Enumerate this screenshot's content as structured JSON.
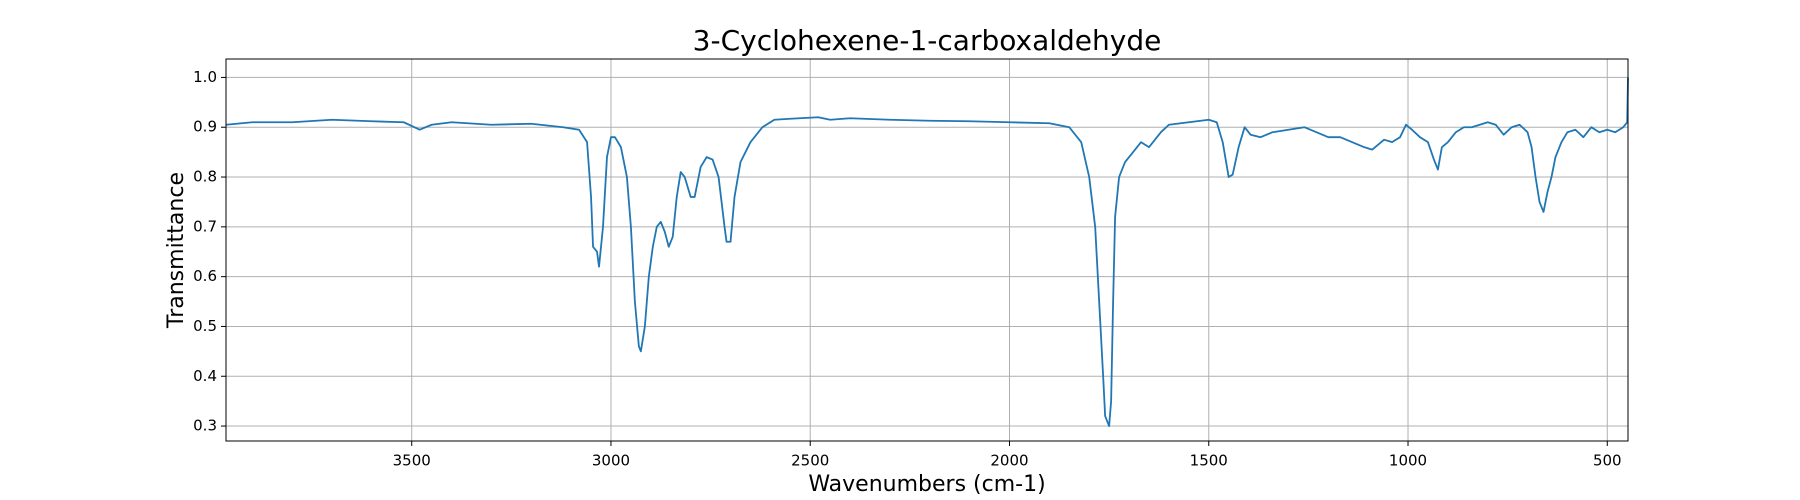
{
  "chart_data": {
    "type": "line",
    "title": "3-Cyclohexene-1-carboxaldehyde",
    "x_label": "Wavenumbers (cm-1)",
    "y_label": "Transmittance",
    "xlim": [
      3966,
      448
    ],
    "ylim": [
      0.27,
      1.037
    ],
    "xticks": [
      3500,
      3000,
      2500,
      2000,
      1500,
      1000,
      500
    ],
    "yticks": [
      0.3,
      0.4,
      0.5,
      0.6,
      0.7,
      0.8,
      0.9,
      {
        "value": 1,
        "label": "1.0"
      }
    ],
    "grid": true,
    "series": [
      {
        "color": "#1f77b4",
        "x": [
          3966,
          3900,
          3800,
          3700,
          3600,
          3520,
          3480,
          3450,
          3400,
          3300,
          3200,
          3120,
          3080,
          3060,
          3050,
          3045,
          3035,
          3030,
          3020,
          3010,
          3000,
          2990,
          2975,
          2960,
          2950,
          2940,
          2930,
          2925,
          2915,
          2905,
          2895,
          2885,
          2875,
          2865,
          2855,
          2845,
          2835,
          2825,
          2815,
          2800,
          2790,
          2775,
          2760,
          2745,
          2730,
          2715,
          2710,
          2700,
          2690,
          2675,
          2650,
          2620,
          2590,
          2550,
          2480,
          2450,
          2400,
          2300,
          2200,
          2100,
          2000,
          1900,
          1850,
          1820,
          1800,
          1785,
          1775,
          1765,
          1760,
          1755,
          1750,
          1745,
          1740,
          1735,
          1725,
          1710,
          1690,
          1670,
          1650,
          1620,
          1600,
          1550,
          1500,
          1480,
          1465,
          1450,
          1440,
          1425,
          1410,
          1395,
          1370,
          1340,
          1300,
          1260,
          1230,
          1200,
          1170,
          1140,
          1110,
          1090,
          1060,
          1040,
          1020,
          1005,
          990,
          970,
          950,
          935,
          925,
          915,
          900,
          880,
          860,
          840,
          800,
          780,
          760,
          740,
          720,
          700,
          690,
          680,
          670,
          660,
          650,
          640,
          630,
          615,
          600,
          580,
          560,
          540,
          520,
          500,
          480,
          460,
          450,
          448
        ],
        "values": [
          0.905,
          0.91,
          0.91,
          0.915,
          0.912,
          0.91,
          0.895,
          0.905,
          0.91,
          0.905,
          0.907,
          0.9,
          0.895,
          0.87,
          0.76,
          0.66,
          0.65,
          0.62,
          0.7,
          0.84,
          0.88,
          0.88,
          0.86,
          0.8,
          0.7,
          0.55,
          0.46,
          0.45,
          0.5,
          0.6,
          0.66,
          0.7,
          0.71,
          0.69,
          0.66,
          0.68,
          0.76,
          0.81,
          0.8,
          0.76,
          0.76,
          0.82,
          0.84,
          0.835,
          0.8,
          0.7,
          0.67,
          0.67,
          0.76,
          0.83,
          0.87,
          0.9,
          0.915,
          0.917,
          0.92,
          0.915,
          0.918,
          0.915,
          0.913,
          0.912,
          0.91,
          0.908,
          0.9,
          0.87,
          0.8,
          0.7,
          0.55,
          0.4,
          0.32,
          0.31,
          0.3,
          0.35,
          0.55,
          0.72,
          0.8,
          0.83,
          0.85,
          0.87,
          0.86,
          0.89,
          0.905,
          0.91,
          0.915,
          0.91,
          0.87,
          0.8,
          0.805,
          0.86,
          0.9,
          0.885,
          0.88,
          0.89,
          0.895,
          0.9,
          0.89,
          0.88,
          0.88,
          0.87,
          0.86,
          0.855,
          0.875,
          0.87,
          0.88,
          0.905,
          0.895,
          0.88,
          0.87,
          0.835,
          0.815,
          0.86,
          0.87,
          0.89,
          0.9,
          0.9,
          0.91,
          0.905,
          0.885,
          0.9,
          0.905,
          0.89,
          0.86,
          0.8,
          0.75,
          0.73,
          0.77,
          0.8,
          0.84,
          0.87,
          0.89,
          0.895,
          0.88,
          0.9,
          0.89,
          0.895,
          0.89,
          0.9,
          0.91,
          1.0
        ]
      }
    ]
  }
}
